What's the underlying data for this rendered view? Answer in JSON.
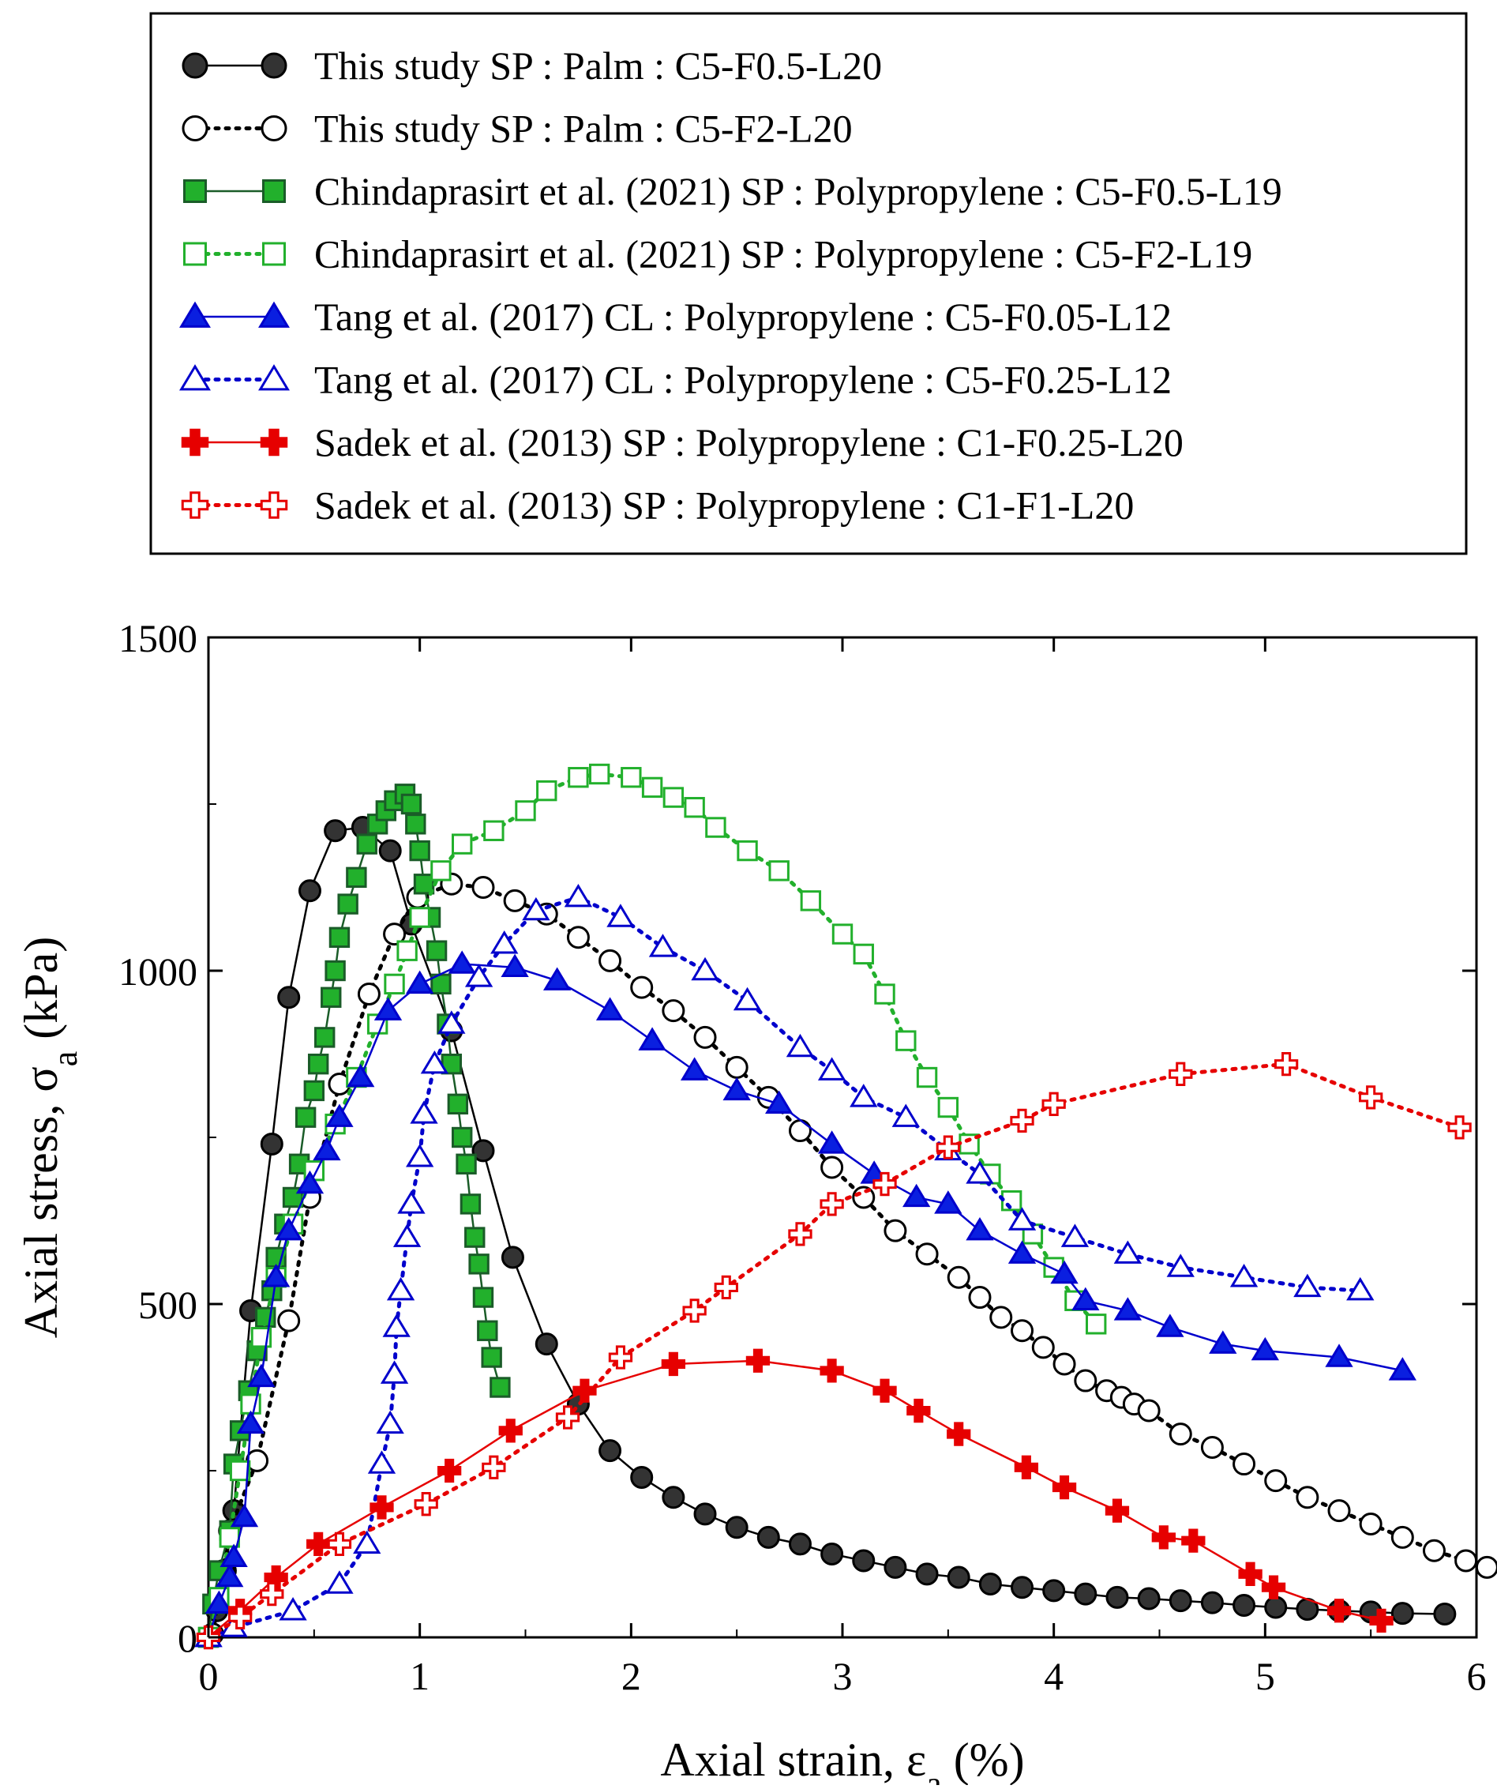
{
  "chart_data": {
    "type": "scatter",
    "title": "",
    "xlabel": "Axial strain, ε",
    "xlabel_sub": "a",
    "xlabel_unit": " (%)",
    "ylabel": "Axial stress, σ",
    "ylabel_sub": "a",
    "ylabel_unit": " (kPa)",
    "xlim": [
      0,
      6
    ],
    "ylim": [
      0,
      1500
    ],
    "xticks": [
      0,
      1,
      2,
      3,
      4,
      5,
      6
    ],
    "yticks": [
      0,
      500,
      1000,
      1500
    ],
    "grid": false,
    "legend_position": "top",
    "series": [
      {
        "name": "This study SP : Palm : C5-F0.5-L20",
        "color": "#000000",
        "fill": "#333333",
        "marker": "circle",
        "line": "solid",
        "points": [
          [
            0,
            0
          ],
          [
            0.04,
            40
          ],
          [
            0.08,
            100
          ],
          [
            0.12,
            190
          ],
          [
            0.2,
            490
          ],
          [
            0.3,
            740
          ],
          [
            0.38,
            960
          ],
          [
            0.48,
            1120
          ],
          [
            0.6,
            1210
          ],
          [
            0.73,
            1215
          ],
          [
            0.86,
            1180
          ],
          [
            0.96,
            1070
          ],
          [
            1.15,
            910
          ],
          [
            1.3,
            730
          ],
          [
            1.44,
            570
          ],
          [
            1.6,
            440
          ],
          [
            1.75,
            350
          ],
          [
            1.9,
            280
          ],
          [
            2.05,
            240
          ],
          [
            2.2,
            210
          ],
          [
            2.35,
            185
          ],
          [
            2.5,
            165
          ],
          [
            2.65,
            150
          ],
          [
            2.8,
            140
          ],
          [
            2.95,
            125
          ],
          [
            3.1,
            115
          ],
          [
            3.25,
            105
          ],
          [
            3.4,
            95
          ],
          [
            3.55,
            90
          ],
          [
            3.7,
            80
          ],
          [
            3.85,
            75
          ],
          [
            4.0,
            70
          ],
          [
            4.15,
            65
          ],
          [
            4.3,
            60
          ],
          [
            4.45,
            58
          ],
          [
            4.6,
            55
          ],
          [
            4.75,
            52
          ],
          [
            4.9,
            48
          ],
          [
            5.05,
            45
          ],
          [
            5.2,
            42
          ],
          [
            5.35,
            40
          ],
          [
            5.5,
            38
          ],
          [
            5.65,
            36
          ],
          [
            5.85,
            35
          ]
        ]
      },
      {
        "name": "This study SP : Palm : C5-F2-L20",
        "color": "#000000",
        "fill": "#ffffff",
        "marker": "circle",
        "line": "dotted",
        "points": [
          [
            0.02,
            5
          ],
          [
            0.07,
            100
          ],
          [
            0.1,
            160
          ],
          [
            0.23,
            265
          ],
          [
            0.38,
            475
          ],
          [
            0.48,
            660
          ],
          [
            0.62,
            830
          ],
          [
            0.76,
            965
          ],
          [
            0.88,
            1055
          ],
          [
            0.99,
            1110
          ],
          [
            1.15,
            1130
          ],
          [
            1.3,
            1125
          ],
          [
            1.45,
            1105
          ],
          [
            1.6,
            1085
          ],
          [
            1.75,
            1050
          ],
          [
            1.9,
            1015
          ],
          [
            2.05,
            975
          ],
          [
            2.2,
            940
          ],
          [
            2.35,
            900
          ],
          [
            2.5,
            855
          ],
          [
            2.65,
            810
          ],
          [
            2.8,
            760
          ],
          [
            2.95,
            705
          ],
          [
            3.1,
            660
          ],
          [
            3.25,
            610
          ],
          [
            3.4,
            575
          ],
          [
            3.55,
            540
          ],
          [
            3.65,
            510
          ],
          [
            3.75,
            480
          ],
          [
            3.85,
            460
          ],
          [
            3.95,
            435
          ],
          [
            4.05,
            410
          ],
          [
            4.15,
            385
          ],
          [
            4.25,
            370
          ],
          [
            4.32,
            360
          ],
          [
            4.38,
            350
          ],
          [
            4.45,
            340
          ],
          [
            4.6,
            305
          ],
          [
            4.75,
            285
          ],
          [
            4.9,
            260
          ],
          [
            5.05,
            235
          ],
          [
            5.2,
            210
          ],
          [
            5.35,
            190
          ],
          [
            5.5,
            170
          ],
          [
            5.65,
            150
          ],
          [
            5.8,
            130
          ],
          [
            5.95,
            115
          ],
          [
            6.05,
            105
          ]
        ]
      },
      {
        "name": "Chindaprasirt et al. (2021) SP : Polypropylene : C5-F0.5-L19",
        "color": "#1a5c28",
        "fill": "#22b02c",
        "marker": "square",
        "line": "solid",
        "points": [
          [
            0.0,
            0
          ],
          [
            0.02,
            50
          ],
          [
            0.05,
            100
          ],
          [
            0.1,
            160
          ],
          [
            0.12,
            260
          ],
          [
            0.15,
            310
          ],
          [
            0.19,
            370
          ],
          [
            0.23,
            430
          ],
          [
            0.27,
            480
          ],
          [
            0.3,
            520
          ],
          [
            0.32,
            570
          ],
          [
            0.36,
            620
          ],
          [
            0.4,
            660
          ],
          [
            0.43,
            710
          ],
          [
            0.46,
            780
          ],
          [
            0.5,
            820
          ],
          [
            0.52,
            860
          ],
          [
            0.55,
            900
          ],
          [
            0.58,
            960
          ],
          [
            0.6,
            1000
          ],
          [
            0.62,
            1050
          ],
          [
            0.66,
            1100
          ],
          [
            0.7,
            1140
          ],
          [
            0.75,
            1190
          ],
          [
            0.8,
            1220
          ],
          [
            0.84,
            1240
          ],
          [
            0.88,
            1255
          ],
          [
            0.93,
            1265
          ],
          [
            0.96,
            1250
          ],
          [
            0.98,
            1220
          ],
          [
            1.0,
            1180
          ],
          [
            1.02,
            1130
          ],
          [
            1.05,
            1080
          ],
          [
            1.08,
            1030
          ],
          [
            1.1,
            980
          ],
          [
            1.13,
            920
          ],
          [
            1.15,
            860
          ],
          [
            1.18,
            800
          ],
          [
            1.2,
            750
          ],
          [
            1.22,
            710
          ],
          [
            1.24,
            650
          ],
          [
            1.26,
            600
          ],
          [
            1.28,
            560
          ],
          [
            1.3,
            510
          ],
          [
            1.32,
            460
          ],
          [
            1.34,
            420
          ],
          [
            1.38,
            375
          ]
        ]
      },
      {
        "name": "Chindaprasirt et al. (2021) SP : Polypropylene : C5-F2-L19",
        "color": "#22b02c",
        "fill": "#ffffff",
        "marker": "square",
        "line": "dotted",
        "points": [
          [
            0,
            0
          ],
          [
            0.05,
            60
          ],
          [
            0.1,
            150
          ],
          [
            0.15,
            250
          ],
          [
            0.2,
            350
          ],
          [
            0.25,
            450
          ],
          [
            0.32,
            540
          ],
          [
            0.4,
            620
          ],
          [
            0.5,
            700
          ],
          [
            0.6,
            770
          ],
          [
            0.7,
            840
          ],
          [
            0.8,
            920
          ],
          [
            0.88,
            980
          ],
          [
            0.94,
            1030
          ],
          [
            1.0,
            1080
          ],
          [
            1.1,
            1150
          ],
          [
            1.2,
            1190
          ],
          [
            1.35,
            1210
          ],
          [
            1.5,
            1240
          ],
          [
            1.6,
            1270
          ],
          [
            1.75,
            1290
          ],
          [
            1.85,
            1295
          ],
          [
            2.0,
            1290
          ],
          [
            2.1,
            1275
          ],
          [
            2.2,
            1260
          ],
          [
            2.3,
            1245
          ],
          [
            2.4,
            1215
          ],
          [
            2.55,
            1180
          ],
          [
            2.7,
            1150
          ],
          [
            2.85,
            1105
          ],
          [
            3.0,
            1055
          ],
          [
            3.1,
            1025
          ],
          [
            3.2,
            965
          ],
          [
            3.3,
            895
          ],
          [
            3.4,
            840
          ],
          [
            3.5,
            795
          ],
          [
            3.6,
            740
          ],
          [
            3.7,
            695
          ],
          [
            3.8,
            655
          ],
          [
            3.9,
            605
          ],
          [
            4.0,
            555
          ],
          [
            4.1,
            505
          ],
          [
            4.2,
            470
          ]
        ]
      },
      {
        "name": "Tang et al. (2017) CL : Polypropylene : C5-F0.05-L12",
        "color": "#0000cc",
        "fill": "#0a1fe0",
        "marker": "triangle",
        "line": "solid",
        "points": [
          [
            0,
            0
          ],
          [
            0.05,
            50
          ],
          [
            0.1,
            90
          ],
          [
            0.12,
            120
          ],
          [
            0.17,
            180
          ],
          [
            0.2,
            320
          ],
          [
            0.25,
            390
          ],
          [
            0.32,
            540
          ],
          [
            0.38,
            610
          ],
          [
            0.48,
            680
          ],
          [
            0.56,
            730
          ],
          [
            0.62,
            780
          ],
          [
            0.72,
            840
          ],
          [
            0.85,
            940
          ],
          [
            1.0,
            980
          ],
          [
            1.2,
            1010
          ],
          [
            1.45,
            1005
          ],
          [
            1.65,
            985
          ],
          [
            1.9,
            940
          ],
          [
            2.1,
            895
          ],
          [
            2.3,
            850
          ],
          [
            2.5,
            820
          ],
          [
            2.7,
            800
          ],
          [
            2.95,
            740
          ],
          [
            3.15,
            695
          ],
          [
            3.35,
            660
          ],
          [
            3.5,
            650
          ],
          [
            3.65,
            610
          ],
          [
            3.85,
            575
          ],
          [
            4.05,
            545
          ],
          [
            4.15,
            505
          ],
          [
            4.35,
            490
          ],
          [
            4.55,
            465
          ],
          [
            4.8,
            440
          ],
          [
            5.0,
            430
          ],
          [
            5.35,
            420
          ],
          [
            5.65,
            400
          ]
        ]
      },
      {
        "name": "Tang et al. (2017) CL : Polypropylene : C5-F0.25-L12",
        "color": "#0000cc",
        "fill": "#ffffff",
        "marker": "triangle",
        "line": "dotted",
        "points": [
          [
            0,
            0
          ],
          [
            0.12,
            15
          ],
          [
            0.4,
            40
          ],
          [
            0.62,
            80
          ],
          [
            0.75,
            140
          ],
          [
            0.82,
            260
          ],
          [
            0.86,
            320
          ],
          [
            0.88,
            395
          ],
          [
            0.89,
            465
          ],
          [
            0.91,
            520
          ],
          [
            0.94,
            600
          ],
          [
            0.96,
            650
          ],
          [
            1.0,
            720
          ],
          [
            1.02,
            785
          ],
          [
            1.07,
            860
          ],
          [
            1.15,
            920
          ],
          [
            1.28,
            990
          ],
          [
            1.4,
            1040
          ],
          [
            1.55,
            1090
          ],
          [
            1.75,
            1110
          ],
          [
            1.95,
            1080
          ],
          [
            2.15,
            1035
          ],
          [
            2.35,
            1000
          ],
          [
            2.55,
            955
          ],
          [
            2.8,
            885
          ],
          [
            2.95,
            850
          ],
          [
            3.1,
            810
          ],
          [
            3.3,
            780
          ],
          [
            3.5,
            730
          ],
          [
            3.65,
            695
          ],
          [
            3.85,
            625
          ],
          [
            4.1,
            600
          ],
          [
            4.35,
            575
          ],
          [
            4.6,
            555
          ],
          [
            4.9,
            540
          ],
          [
            5.2,
            525
          ],
          [
            5.45,
            520
          ]
        ]
      },
      {
        "name": "Sadek et al. (2013) SP : Polypropylene : C1-F0.25-L20",
        "color": "#e60000",
        "fill": "#e60000",
        "marker": "plus",
        "line": "solid",
        "points": [
          [
            0,
            0
          ],
          [
            0.15,
            40
          ],
          [
            0.32,
            90
          ],
          [
            0.52,
            140
          ],
          [
            0.82,
            195
          ],
          [
            1.14,
            250
          ],
          [
            1.43,
            310
          ],
          [
            1.78,
            370
          ],
          [
            2.2,
            410
          ],
          [
            2.6,
            415
          ],
          [
            2.95,
            400
          ],
          [
            3.2,
            370
          ],
          [
            3.36,
            340
          ],
          [
            3.55,
            305
          ],
          [
            3.87,
            255
          ],
          [
            4.05,
            225
          ],
          [
            4.3,
            190
          ],
          [
            4.52,
            150
          ],
          [
            4.66,
            145
          ],
          [
            4.93,
            95
          ],
          [
            5.04,
            75
          ],
          [
            5.35,
            40
          ],
          [
            5.55,
            25
          ]
        ]
      },
      {
        "name": "Sadek et al. (2013) SP : Polypropylene : C1-F1-L20",
        "color": "#e60000",
        "fill": "#ffffff",
        "marker": "plus",
        "line": "dotted",
        "points": [
          [
            0,
            0
          ],
          [
            0.15,
            30
          ],
          [
            0.3,
            65
          ],
          [
            0.62,
            140
          ],
          [
            1.03,
            200
          ],
          [
            1.35,
            255
          ],
          [
            1.7,
            330
          ],
          [
            1.95,
            420
          ],
          [
            2.3,
            490
          ],
          [
            2.45,
            525
          ],
          [
            2.8,
            605
          ],
          [
            2.95,
            650
          ],
          [
            3.2,
            680
          ],
          [
            3.5,
            735
          ],
          [
            3.85,
            775
          ],
          [
            4.0,
            800
          ],
          [
            4.6,
            845
          ],
          [
            5.1,
            860
          ],
          [
            5.5,
            810
          ],
          [
            5.92,
            765
          ]
        ]
      }
    ]
  }
}
